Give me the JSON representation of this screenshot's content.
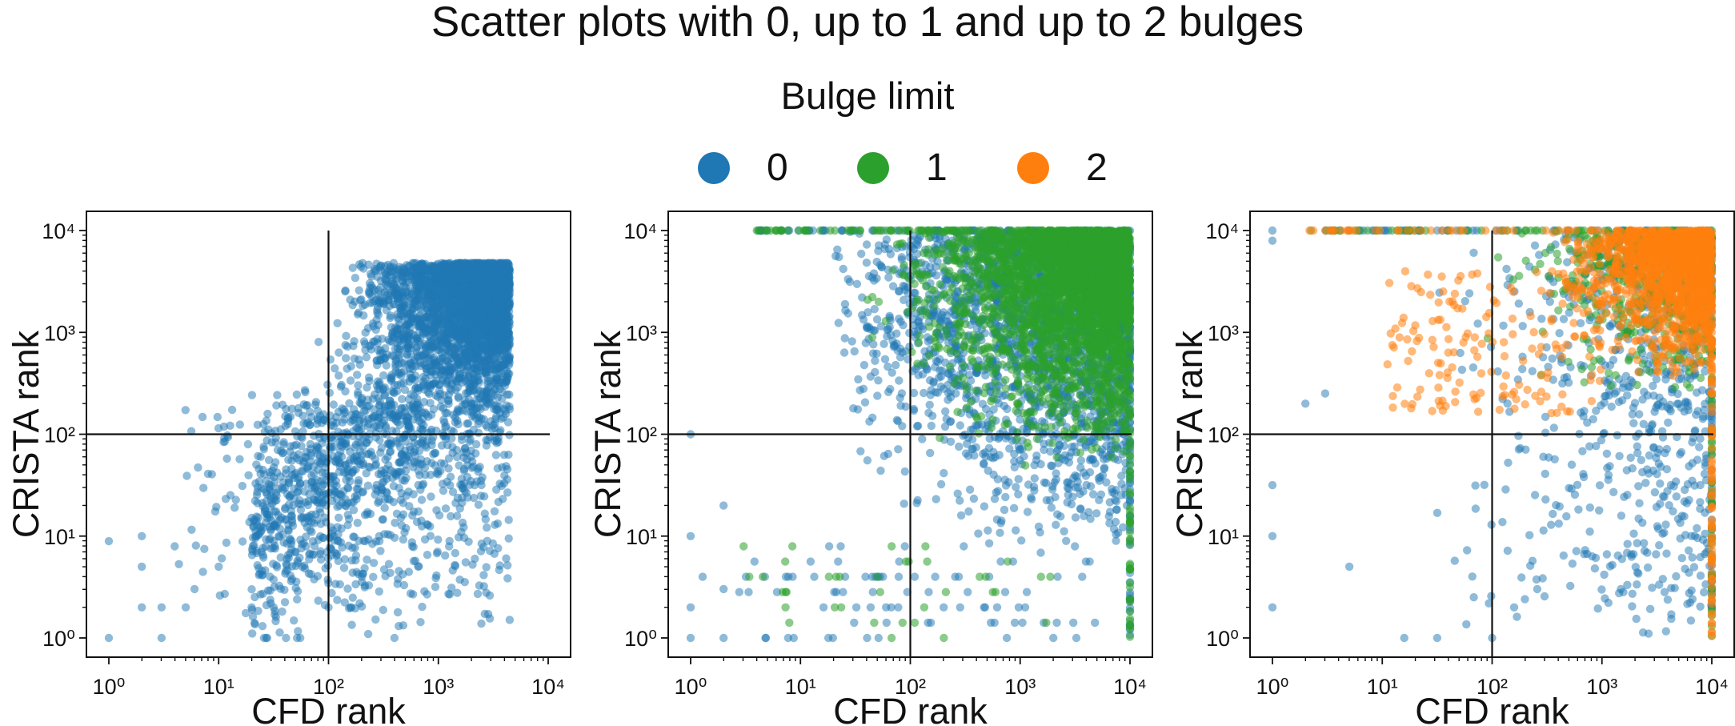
{
  "title": "Scatter plots with 0, up to 1 and up to 2 bulges",
  "legend": {
    "title": "Bulge limit",
    "items": [
      {
        "label": "0",
        "color": "#1f77b4"
      },
      {
        "label": "1",
        "color": "#2ca02c"
      },
      {
        "label": "2",
        "color": "#ff7f0e"
      }
    ]
  },
  "chart_data": [
    {
      "type": "scatter",
      "xlabel": "CFD rank",
      "ylabel": "CRISTA rank",
      "xscale": "log",
      "yscale": "log",
      "xlim": [
        1,
        10000
      ],
      "ylim": [
        1,
        10000
      ],
      "xticks": [
        "10^0",
        "10^1",
        "10^2",
        "10^3",
        "10^4"
      ],
      "yticks": [
        "10^0",
        "10^1",
        "10^2",
        "10^3",
        "10^4"
      ],
      "reference_lines": {
        "x": 100,
        "y": 100
      },
      "series": [
        {
          "name": "0",
          "color": "#1f77b4",
          "x_range": [
            1,
            4500
          ],
          "y_range": [
            1,
            4800
          ],
          "density": "dense upper-right, sparse lower-left"
        }
      ]
    },
    {
      "type": "scatter",
      "xlabel": "CFD rank",
      "ylabel": "CRISTA rank",
      "xscale": "log",
      "yscale": "log",
      "xlim": [
        1,
        10000
      ],
      "ylim": [
        1,
        10000
      ],
      "xticks": [
        "10^0",
        "10^1",
        "10^2",
        "10^3",
        "10^4"
      ],
      "yticks": [
        "10^0",
        "10^1",
        "10^2",
        "10^3",
        "10^4"
      ],
      "reference_lines": {
        "x": 100,
        "y": 100
      },
      "series": [
        {
          "name": "0",
          "color": "#1f77b4",
          "x_range": [
            1,
            10000
          ],
          "y_range": [
            1,
            10000
          ],
          "density": "dense upper-right"
        },
        {
          "name": "1",
          "color": "#2ca02c",
          "x_range": [
            1,
            10000
          ],
          "y_range": [
            1,
            10000
          ],
          "density": "very dense upper-right, saturated at 10^4"
        }
      ]
    },
    {
      "type": "scatter",
      "xlabel": "CFD rank",
      "ylabel": "CRISTA rank",
      "xscale": "log",
      "yscale": "log",
      "xlim": [
        1,
        10000
      ],
      "ylim": [
        1,
        10000
      ],
      "xticks": [
        "10^0",
        "10^1",
        "10^2",
        "10^3",
        "10^4"
      ],
      "yticks": [
        "10^0",
        "10^1",
        "10^2",
        "10^3",
        "10^4"
      ],
      "reference_lines": {
        "x": 100,
        "y": 100
      },
      "series": [
        {
          "name": "0",
          "color": "#1f77b4",
          "x_range": [
            1,
            10000
          ],
          "y_range": [
            1,
            10000
          ],
          "density": "scattered, denser toward right edge"
        },
        {
          "name": "1",
          "color": "#2ca02c",
          "x_range": [
            1,
            10000
          ],
          "y_range": [
            1,
            10000
          ],
          "density": "scattered upper-right"
        },
        {
          "name": "2",
          "color": "#ff7f0e",
          "x_range": [
            2,
            10000
          ],
          "y_range": [
            1,
            10000
          ],
          "density": "dense upper-right corner, saturated at 10^4"
        }
      ]
    }
  ]
}
